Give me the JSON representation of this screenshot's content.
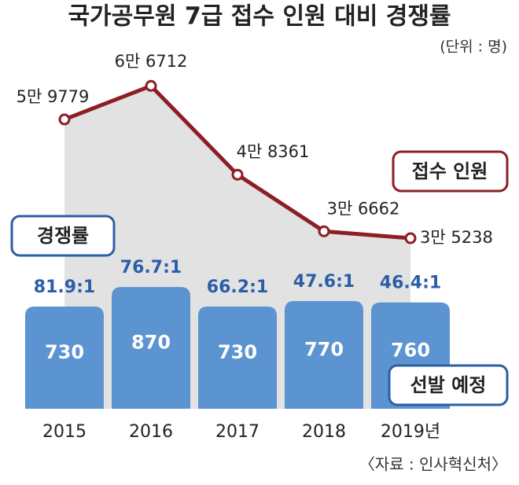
{
  "chart_data": {
    "type": "combo",
    "title": "국가공무원 7급 접수 인원 대비 경쟁률",
    "unit": "(단위 : 명)",
    "source": "〈자료 : 인사혁신처〉",
    "categories": [
      "2015",
      "2016",
      "2017",
      "2018",
      "2019년"
    ],
    "ylim": [
      0,
      1000
    ],
    "y2lim": [
      0,
      70000
    ],
    "series": [
      {
        "name": "선발 예정",
        "type": "bar",
        "color": "#5b94d0",
        "values": [
          730,
          870,
          730,
          770,
          760
        ]
      },
      {
        "name": "접수 인원",
        "type": "line",
        "axis": "y2",
        "color": "#8c1f25",
        "values": [
          59779,
          66712,
          48361,
          36662,
          35238
        ],
        "value_labels": [
          "5만 9779",
          "6만 6712",
          "4만 8361",
          "3만 6662",
          "3만 5238"
        ]
      }
    ],
    "ratio": {
      "name": "경쟁률",
      "labels": [
        "81.9:1",
        "76.7:1",
        "66.2:1",
        "47.6:1",
        "46.4:1"
      ]
    }
  }
}
